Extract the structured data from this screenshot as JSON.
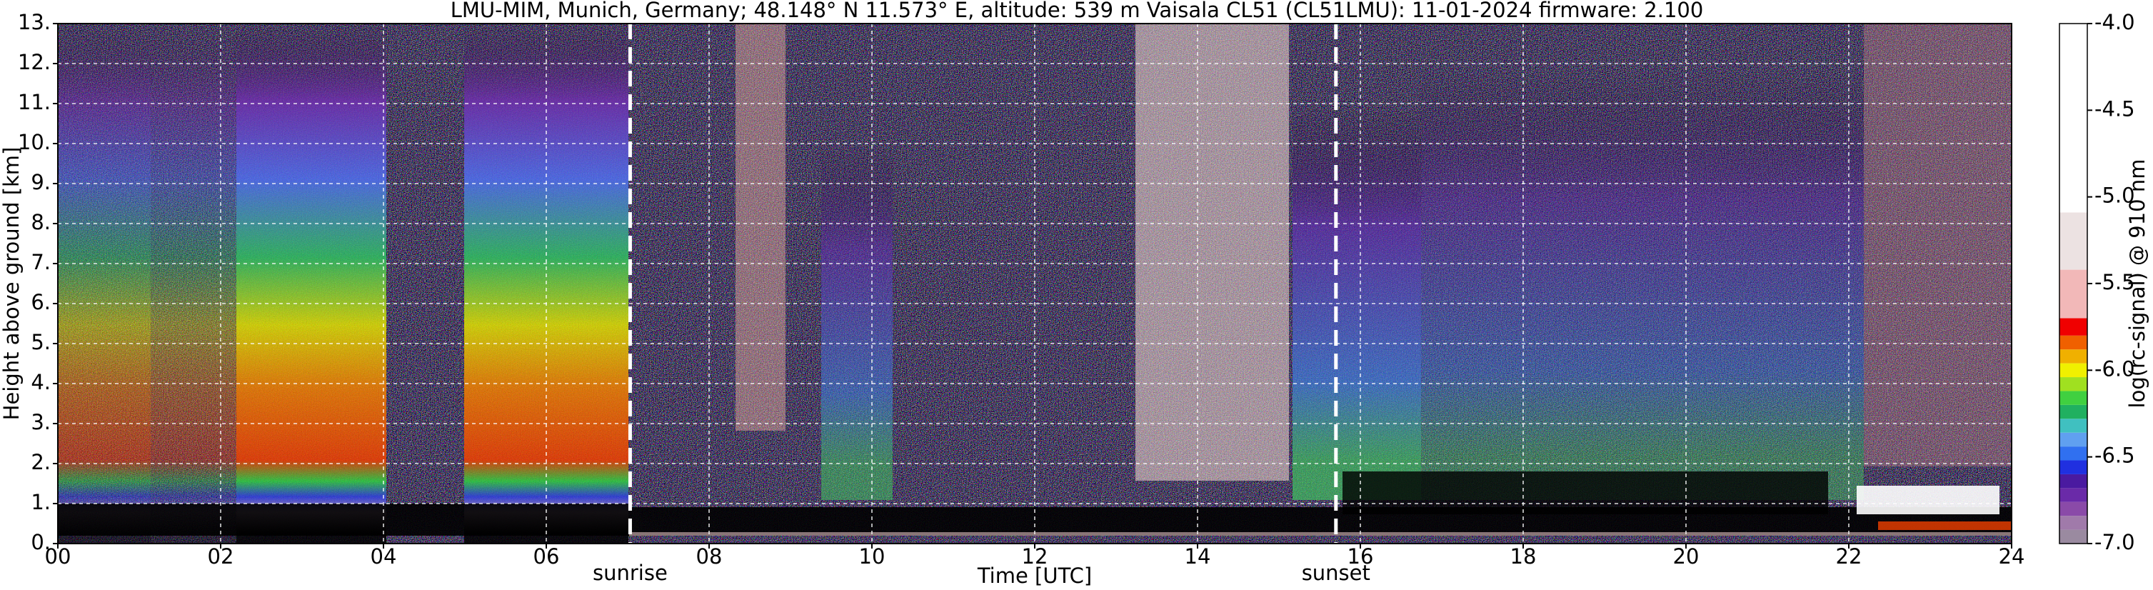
{
  "chart_data": {
    "type": "heatmap",
    "title": "LMU-MIM, Munich, Germany; 48.148° N 11.573° E, altitude: 539 m    Vaisala CL51 (CL51LMU): 11-01-2024    firmware: 2.100",
    "x_label": "Time [UTC]",
    "y_label": "Height above ground [km]",
    "xlim": [
      0,
      24
    ],
    "xticks": [
      {
        "value": 0,
        "label": "00"
      },
      {
        "value": 2,
        "label": "02"
      },
      {
        "value": 4,
        "label": "04"
      },
      {
        "value": 6,
        "label": "06"
      },
      {
        "value": 8,
        "label": "08"
      },
      10,
      12,
      14,
      16,
      18,
      20,
      22,
      24
    ],
    "ylim": [
      0,
      13
    ],
    "yticks": [
      {
        "value": 0,
        "label": "0."
      },
      {
        "value": 1,
        "label": "1."
      },
      {
        "value": 2,
        "label": "2."
      },
      {
        "value": 3,
        "label": "3."
      },
      {
        "value": 4,
        "label": "4."
      },
      {
        "value": 5,
        "label": "5."
      },
      {
        "value": 6,
        "label": "6."
      },
      {
        "value": 7,
        "label": "7."
      },
      {
        "value": 8,
        "label": "8."
      },
      {
        "value": 9,
        "label": "9."
      },
      {
        "value": 10,
        "label": "10."
      },
      {
        "value": 11,
        "label": "11."
      },
      {
        "value": 12,
        "label": "12."
      },
      {
        "value": 13,
        "label": "13."
      }
    ],
    "grid": true,
    "annotations": [
      {
        "text": "sunrise",
        "x": 7.03
      },
      {
        "text": "sunset",
        "x": 15.7
      }
    ],
    "colorbar": {
      "label": "log(rc-signal) @ 910 nm",
      "lim": [
        -7,
        -4
      ],
      "ticks": [
        {
          "value": -4,
          "label": "-4.0"
        },
        -4.5,
        {
          "value": -5,
          "label": "-5.0"
        },
        -5.5,
        {
          "value": -6,
          "label": "-6.0"
        },
        -6.5,
        {
          "value": -7,
          "label": "-7.0"
        }
      ],
      "levels": [
        -7.0,
        -6.92,
        -6.84,
        -6.76,
        -6.68,
        -6.6,
        -6.52,
        -6.44,
        -6.36,
        -6.28,
        -6.2,
        -6.12,
        -6.04,
        -5.96,
        -5.88,
        -5.8,
        -5.7,
        -5.42,
        -5.09,
        -4.0
      ],
      "colors": [
        "#9a8aa0",
        "#a07aaa",
        "#8a4aa8",
        "#6a2aa8",
        "#4a1aa0",
        "#2030e0",
        "#3070f0",
        "#60a0f0",
        "#40c0c0",
        "#20b060",
        "#40d040",
        "#a0e020",
        "#f0f000",
        "#f0b000",
        "#f06000",
        "#f00000",
        "#f2b8b8",
        "#ece2e2",
        "#ffffff"
      ]
    }
  }
}
